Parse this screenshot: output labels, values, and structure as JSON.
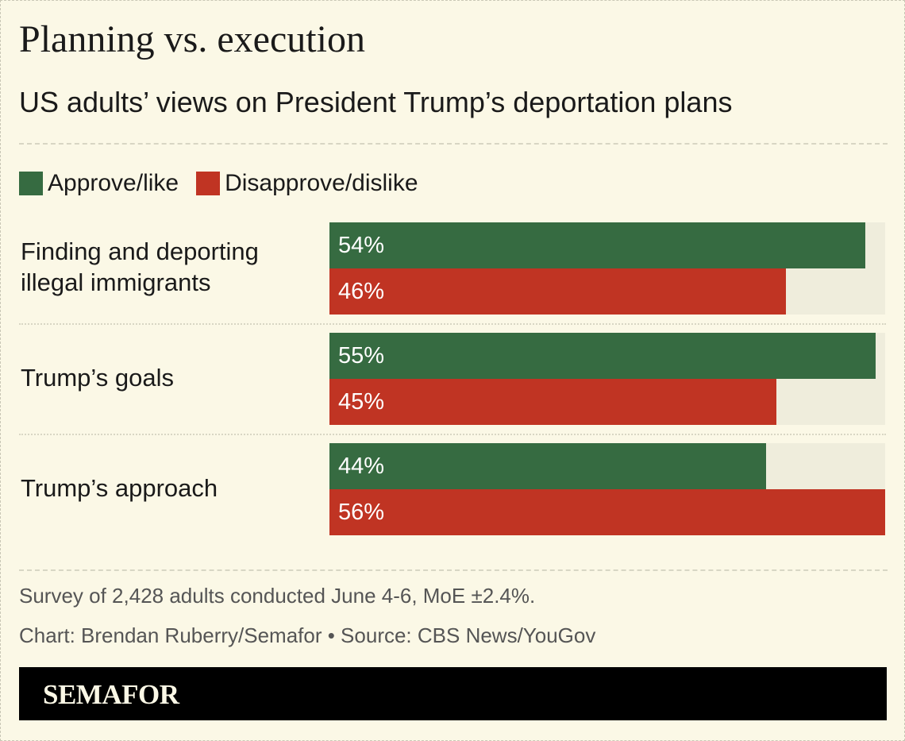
{
  "title": "Planning vs. execution",
  "subtitle": "US adults’ views on President Trump’s deportation plans",
  "legend": [
    {
      "label": "Approve/like",
      "color": "#366b41"
    },
    {
      "label": "Disapprove/dislike",
      "color": "#c03423"
    }
  ],
  "chart_data": {
    "type": "bar",
    "orientation": "horizontal",
    "title": "Planning vs. execution",
    "subtitle": "US adults’ views on President Trump’s deportation plans",
    "categories": [
      "Finding and deporting illegal immigrants",
      "Trump’s goals",
      "Trump’s approach"
    ],
    "series": [
      {
        "name": "Approve/like",
        "color": "#366b41",
        "values": [
          54,
          55,
          44
        ],
        "labels": [
          "54%",
          "55%",
          "44%"
        ]
      },
      {
        "name": "Disapprove/dislike",
        "color": "#c03423",
        "values": [
          46,
          45,
          56
        ],
        "labels": [
          "46%",
          "45%",
          "56%"
        ]
      }
    ],
    "xlim": [
      0,
      56
    ],
    "legend_position": "top-left",
    "grid": false
  },
  "notes": {
    "survey": "Survey of 2,428 adults conducted June 4-6, MoE ±2.4%.",
    "credit": "Chart: Brendan Ruberry/Semafor • Source: CBS News/YouGov"
  },
  "footer": {
    "brand": "SEMAFOR"
  }
}
